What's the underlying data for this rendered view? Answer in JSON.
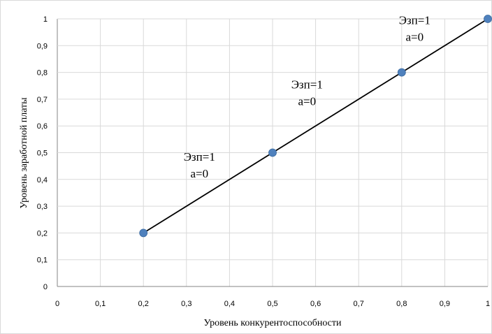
{
  "chart_data": {
    "type": "scatter",
    "title": "",
    "xlabel": "Уровень конкурентоспособности",
    "ylabel": "Уровень заработной платы",
    "xlim": [
      0,
      1
    ],
    "ylim": [
      0,
      1
    ],
    "x_ticks": [
      "0",
      "0,1",
      "0,2",
      "0,3",
      "0,4",
      "0,5",
      "0,6",
      "0,7",
      "0,8",
      "0,9",
      "1"
    ],
    "y_ticks": [
      "0",
      "0,1",
      "0,2",
      "0,3",
      "0,4",
      "0,5",
      "0,6",
      "0,7",
      "0,8",
      "0,9",
      "1"
    ],
    "grid": true,
    "legend": "none",
    "series": [
      {
        "x": [
          0.2,
          0.5,
          0.8,
          1.0
        ],
        "y": [
          0.2,
          0.5,
          0.8,
          1.0
        ],
        "marker_color": "#4f81bd",
        "line_color": "#000000"
      }
    ],
    "annotations": [
      {
        "lines": [
          "Эзп=1",
          "a=0"
        ],
        "x": 0.33,
        "y": 0.47
      },
      {
        "lines": [
          "Эзп=1",
          "a=0"
        ],
        "x": 0.58,
        "y": 0.74
      },
      {
        "lines": [
          "Эзп=1",
          "a=0"
        ],
        "x": 0.83,
        "y": 0.98
      }
    ]
  }
}
